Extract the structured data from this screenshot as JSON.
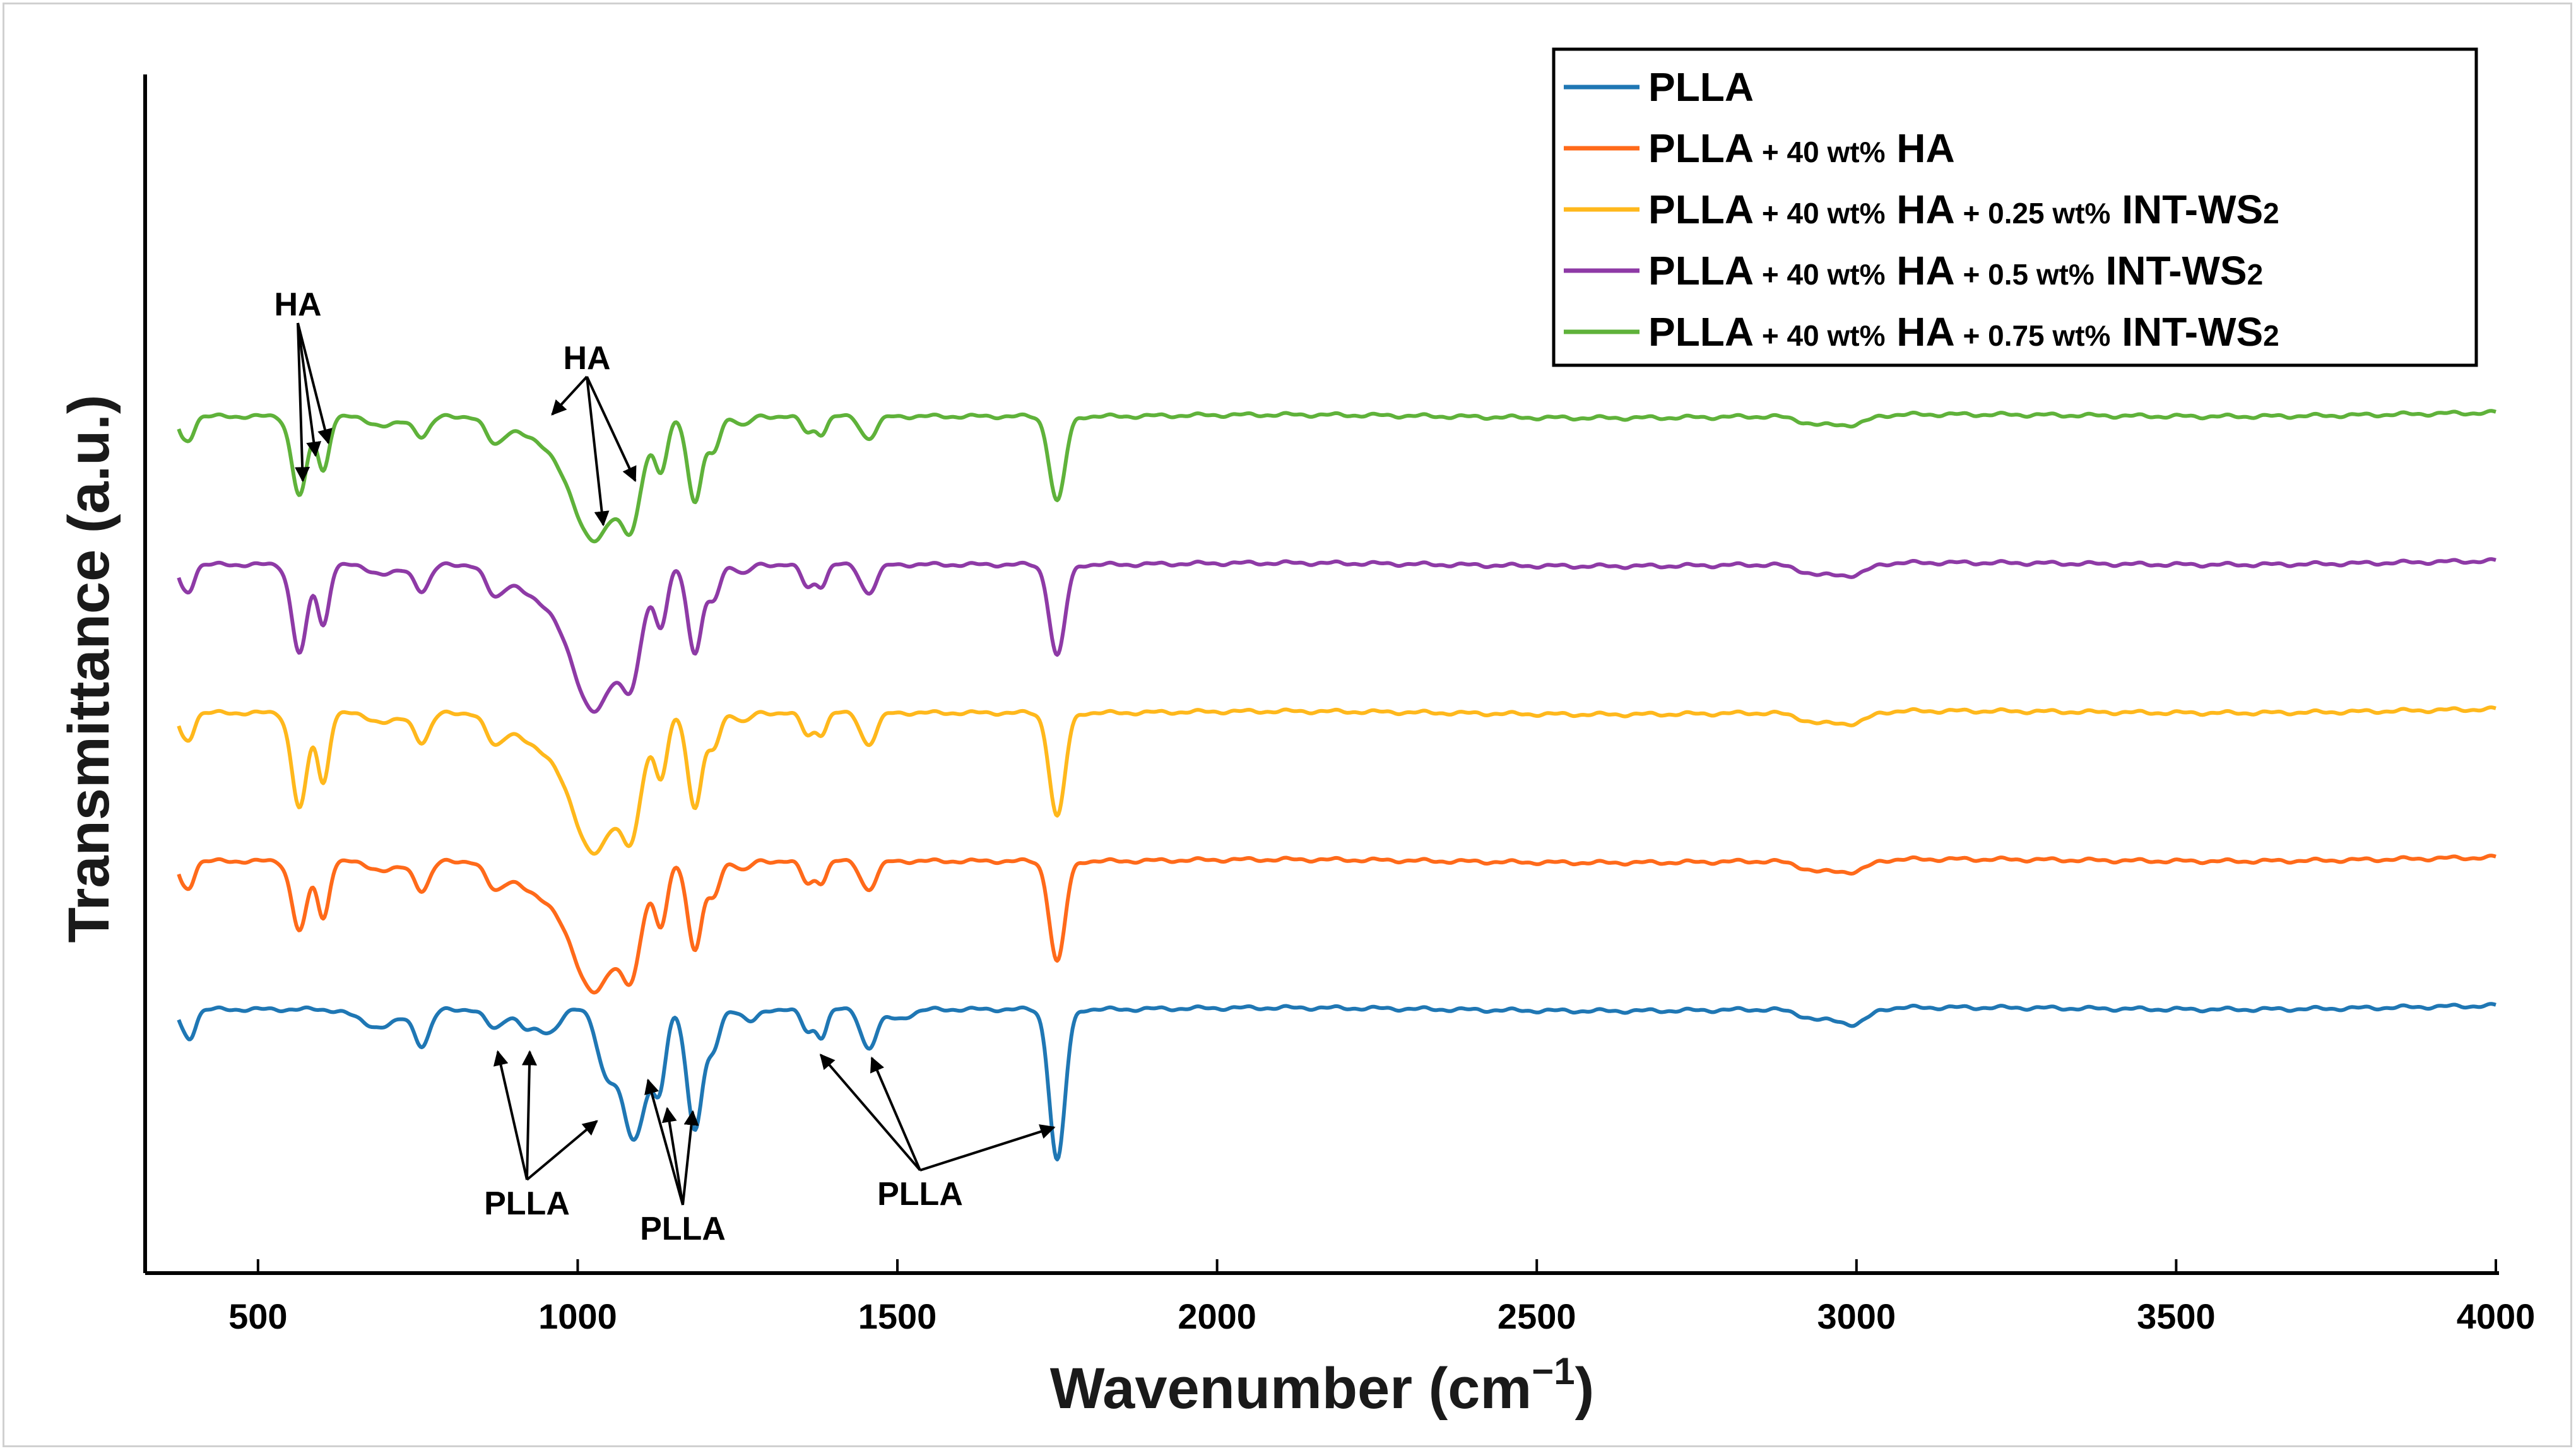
{
  "chart_data": {
    "type": "line",
    "title": "",
    "xlabel": "Wavenumber (cm",
    "xlabel_superscript": "−1",
    "xlabel_close": ")",
    "ylabel": "Transmittance (a.u.)",
    "xlim": [
      360,
      4000
    ],
    "x_ticks": [
      500,
      1000,
      1500,
      2000,
      2500,
      3000,
      3500,
      4000
    ],
    "legend_position": "top-right",
    "series": [
      {
        "name": "PLLA",
        "label_main": "PLLA",
        "color": "#1f77b4",
        "offset": 0,
        "bands": [
          [
            380,
            -15,
            6
          ],
          [
            392,
            -38,
            8
          ],
          [
            400,
            -10,
            8
          ],
          [
            690,
            -28,
            30
          ],
          [
            757,
            -55,
            12
          ],
          [
            870,
            -30,
            14
          ],
          [
            920,
            -30,
            14
          ],
          [
            955,
            -35,
            16
          ],
          [
            1044,
            -90,
            14
          ],
          [
            1088,
            -205,
            20
          ],
          [
            1128,
            -110,
            10
          ],
          [
            1183,
            -190,
            12
          ],
          [
            1212,
            -60,
            10
          ],
          [
            1270,
            -20,
            12
          ],
          [
            1360,
            -35,
            10
          ],
          [
            1382,
            -40,
            8
          ],
          [
            1455,
            -60,
            12
          ],
          [
            1500,
            -15,
            20
          ],
          [
            1750,
            -240,
            12
          ],
          [
            2945,
            -18,
            30
          ],
          [
            3000,
            -22,
            20
          ]
        ]
      },
      {
        "name": "PLLA + 40 wt% HA",
        "label_main": "PLLA",
        "label_small": "+ 40 wt%",
        "label_end": "HA",
        "color": "#ff6a1a",
        "offset": 235,
        "bands": [
          [
            380,
            -20,
            6
          ],
          [
            392,
            -40,
            8
          ],
          [
            565,
            -110,
            12
          ],
          [
            602,
            -90,
            9
          ],
          [
            700,
            -15,
            25
          ],
          [
            757,
            -45,
            12
          ],
          [
            870,
            -40,
            14
          ],
          [
            930,
            -45,
            30
          ],
          [
            1025,
            -205,
            38
          ],
          [
            1085,
            -130,
            16
          ],
          [
            1130,
            -100,
            10
          ],
          [
            1183,
            -140,
            11
          ],
          [
            1212,
            -55,
            10
          ],
          [
            1260,
            -15,
            10
          ],
          [
            1360,
            -35,
            10
          ],
          [
            1382,
            -30,
            8
          ],
          [
            1455,
            -45,
            12
          ],
          [
            1750,
            -160,
            12
          ],
          [
            2945,
            -18,
            30
          ],
          [
            3000,
            -15,
            20
          ]
        ]
      },
      {
        "name": "PLLA + 40 wt% HA + 0.25 wt% INT-WS2",
        "label_main": "PLLA",
        "label_small": "+ 40 wt%",
        "label_mid": "HA",
        "label_small2": "+ 0.25 wt%",
        "label_end": "INT-WS",
        "label_sub": "2",
        "color": "#ffb81c",
        "offset": 470,
        "bands": [
          [
            380,
            -20,
            6
          ],
          [
            392,
            -40,
            8
          ],
          [
            565,
            -150,
            12
          ],
          [
            602,
            -110,
            9
          ],
          [
            700,
            -15,
            25
          ],
          [
            757,
            -45,
            12
          ],
          [
            870,
            -45,
            14
          ],
          [
            930,
            -45,
            30
          ],
          [
            1025,
            -220,
            38
          ],
          [
            1085,
            -140,
            16
          ],
          [
            1130,
            -100,
            10
          ],
          [
            1183,
            -150,
            11
          ],
          [
            1212,
            -55,
            10
          ],
          [
            1260,
            -15,
            10
          ],
          [
            1360,
            -35,
            10
          ],
          [
            1382,
            -30,
            8
          ],
          [
            1455,
            -50,
            12
          ],
          [
            1750,
            -165,
            12
          ],
          [
            2945,
            -18,
            30
          ],
          [
            3000,
            -15,
            20
          ]
        ]
      },
      {
        "name": "PLLA + 40 wt% HA + 0.5 wt% INT-WS2",
        "label_main": "PLLA",
        "label_small": "+ 40 wt%",
        "label_mid": "HA",
        "label_small2": "+ 0.5 wt%",
        "label_end": "INT-WS",
        "label_sub": "2",
        "color": "#8e3aa6",
        "offset": 705,
        "bands": [
          [
            380,
            -20,
            6
          ],
          [
            392,
            -40,
            8
          ],
          [
            565,
            -140,
            12
          ],
          [
            602,
            -95,
            9
          ],
          [
            700,
            -15,
            25
          ],
          [
            757,
            -40,
            12
          ],
          [
            870,
            -45,
            14
          ],
          [
            930,
            -45,
            30
          ],
          [
            1025,
            -230,
            38
          ],
          [
            1085,
            -130,
            16
          ],
          [
            1130,
            -95,
            10
          ],
          [
            1183,
            -140,
            11
          ],
          [
            1212,
            -55,
            10
          ],
          [
            1260,
            -15,
            10
          ],
          [
            1360,
            -35,
            10
          ],
          [
            1382,
            -30,
            8
          ],
          [
            1455,
            -45,
            12
          ],
          [
            1750,
            -145,
            12
          ],
          [
            2945,
            -18,
            30
          ],
          [
            3000,
            -15,
            20
          ]
        ]
      },
      {
        "name": "PLLA + 40 wt% HA + 0.75 wt% INT-WS2",
        "label_main": "PLLA",
        "label_small": "+ 40 wt%",
        "label_mid": "HA",
        "label_small2": "+ 0.75 wt%",
        "label_end": "INT-WS",
        "label_sub": "2",
        "color": "#5fb23a",
        "offset": 940,
        "bands": [
          [
            380,
            -20,
            6
          ],
          [
            392,
            -35,
            8
          ],
          [
            565,
            -125,
            12
          ],
          [
            602,
            -85,
            9
          ],
          [
            700,
            -15,
            25
          ],
          [
            757,
            -30,
            12
          ],
          [
            870,
            -40,
            14
          ],
          [
            930,
            -30,
            30
          ],
          [
            1025,
            -195,
            38
          ],
          [
            1085,
            -125,
            16
          ],
          [
            1130,
            -85,
            10
          ],
          [
            1183,
            -135,
            11
          ],
          [
            1212,
            -55,
            10
          ],
          [
            1260,
            -15,
            10
          ],
          [
            1360,
            -25,
            10
          ],
          [
            1382,
            -25,
            8
          ],
          [
            1455,
            -35,
            12
          ],
          [
            1750,
            -135,
            12
          ],
          [
            2945,
            -15,
            30
          ],
          [
            3000,
            -12,
            20
          ]
        ]
      }
    ],
    "annotations": [
      {
        "text": "HA",
        "targets": [
          [
            570,
            940,
            -110
          ],
          [
            590,
            940,
            -70
          ],
          [
            610,
            940,
            -50
          ]
        ]
      },
      {
        "text": "HA",
        "targets": [
          [
            960,
            940,
            -5
          ],
          [
            1040,
            940,
            -180
          ],
          [
            1090,
            940,
            -110
          ]
        ]
      },
      {
        "text": "PLLA",
        "targets": [
          [
            875,
            0,
            -55
          ],
          [
            925,
            0,
            -55
          ],
          [
            1030,
            0,
            -165
          ]
        ]
      },
      {
        "text": "PLLA",
        "targets": [
          [
            1110,
            0,
            -100
          ],
          [
            1140,
            0,
            -145
          ],
          [
            1180,
            0,
            -150
          ]
        ]
      },
      {
        "text": "PLLA",
        "targets": [
          [
            1380,
            0,
            -60
          ],
          [
            1460,
            0,
            -65
          ],
          [
            1745,
            0,
            -175
          ]
        ]
      }
    ]
  }
}
